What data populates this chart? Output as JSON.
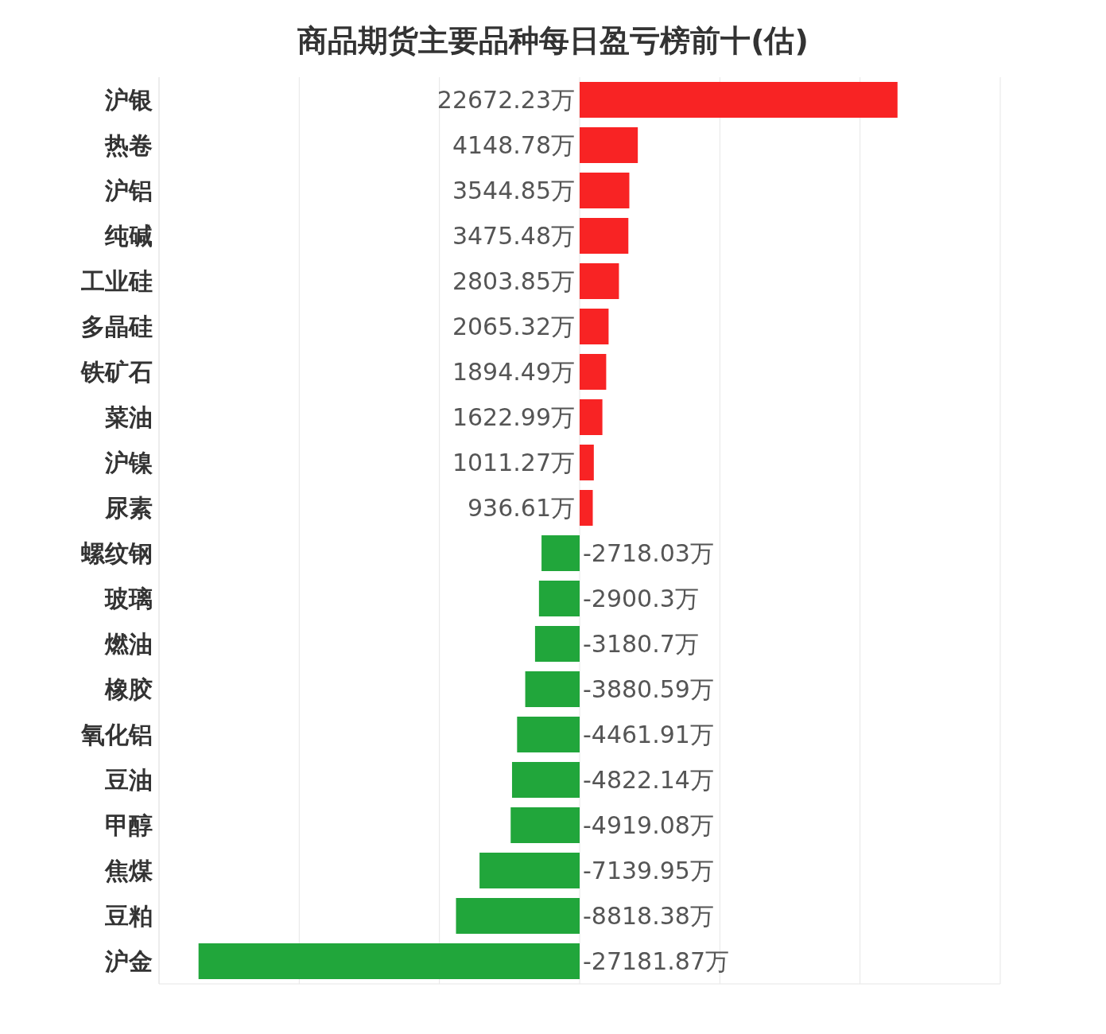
{
  "chart_data": {
    "type": "bar",
    "orientation": "horizontal",
    "title": "商品期货主要品种每日盈亏榜前十(估)",
    "categories": [
      "沪银",
      "热卷",
      "沪铝",
      "纯碱",
      "工业硅",
      "多晶硅",
      "铁矿石",
      "菜油",
      "沪镍",
      "尿素",
      "螺纹钢",
      "玻璃",
      "燃油",
      "橡胶",
      "氧化铝",
      "豆油",
      "甲醇",
      "焦煤",
      "豆粕",
      "沪金"
    ],
    "values": [
      22672.23,
      4148.78,
      3544.85,
      3475.48,
      2803.85,
      2065.32,
      1894.49,
      1622.99,
      1011.27,
      936.61,
      -2718.03,
      -2900.3,
      -3180.7,
      -3880.59,
      -4461.91,
      -4822.14,
      -4919.08,
      -7139.95,
      -8818.38,
      -27181.87
    ],
    "value_labels": [
      "22672.23万",
      "4148.78万",
      "3544.85万",
      "3475.48万",
      "2803.85万",
      "2065.32万",
      "1894.49万",
      "1622.99万",
      "1011.27万",
      "936.61万",
      "-2718.03万",
      "-2900.3万",
      "-3180.7万",
      "-3880.59万",
      "-4461.91万",
      "-4822.14万",
      "-4919.08万",
      "-7139.95万",
      "-8818.38万",
      "-27181.87万"
    ],
    "colors": [
      "#f82324",
      "#f82324",
      "#f82324",
      "#f82324",
      "#f82324",
      "#f82324",
      "#f82324",
      "#f82324",
      "#f82324",
      "#f82324",
      "#21a63b",
      "#21a63b",
      "#21a63b",
      "#21a63b",
      "#21a63b",
      "#21a63b",
      "#21a63b",
      "#21a63b",
      "#21a63b",
      "#21a63b"
    ],
    "xlim": [
      -30000,
      30000
    ],
    "grid": "x",
    "tick_labels": "y"
  }
}
